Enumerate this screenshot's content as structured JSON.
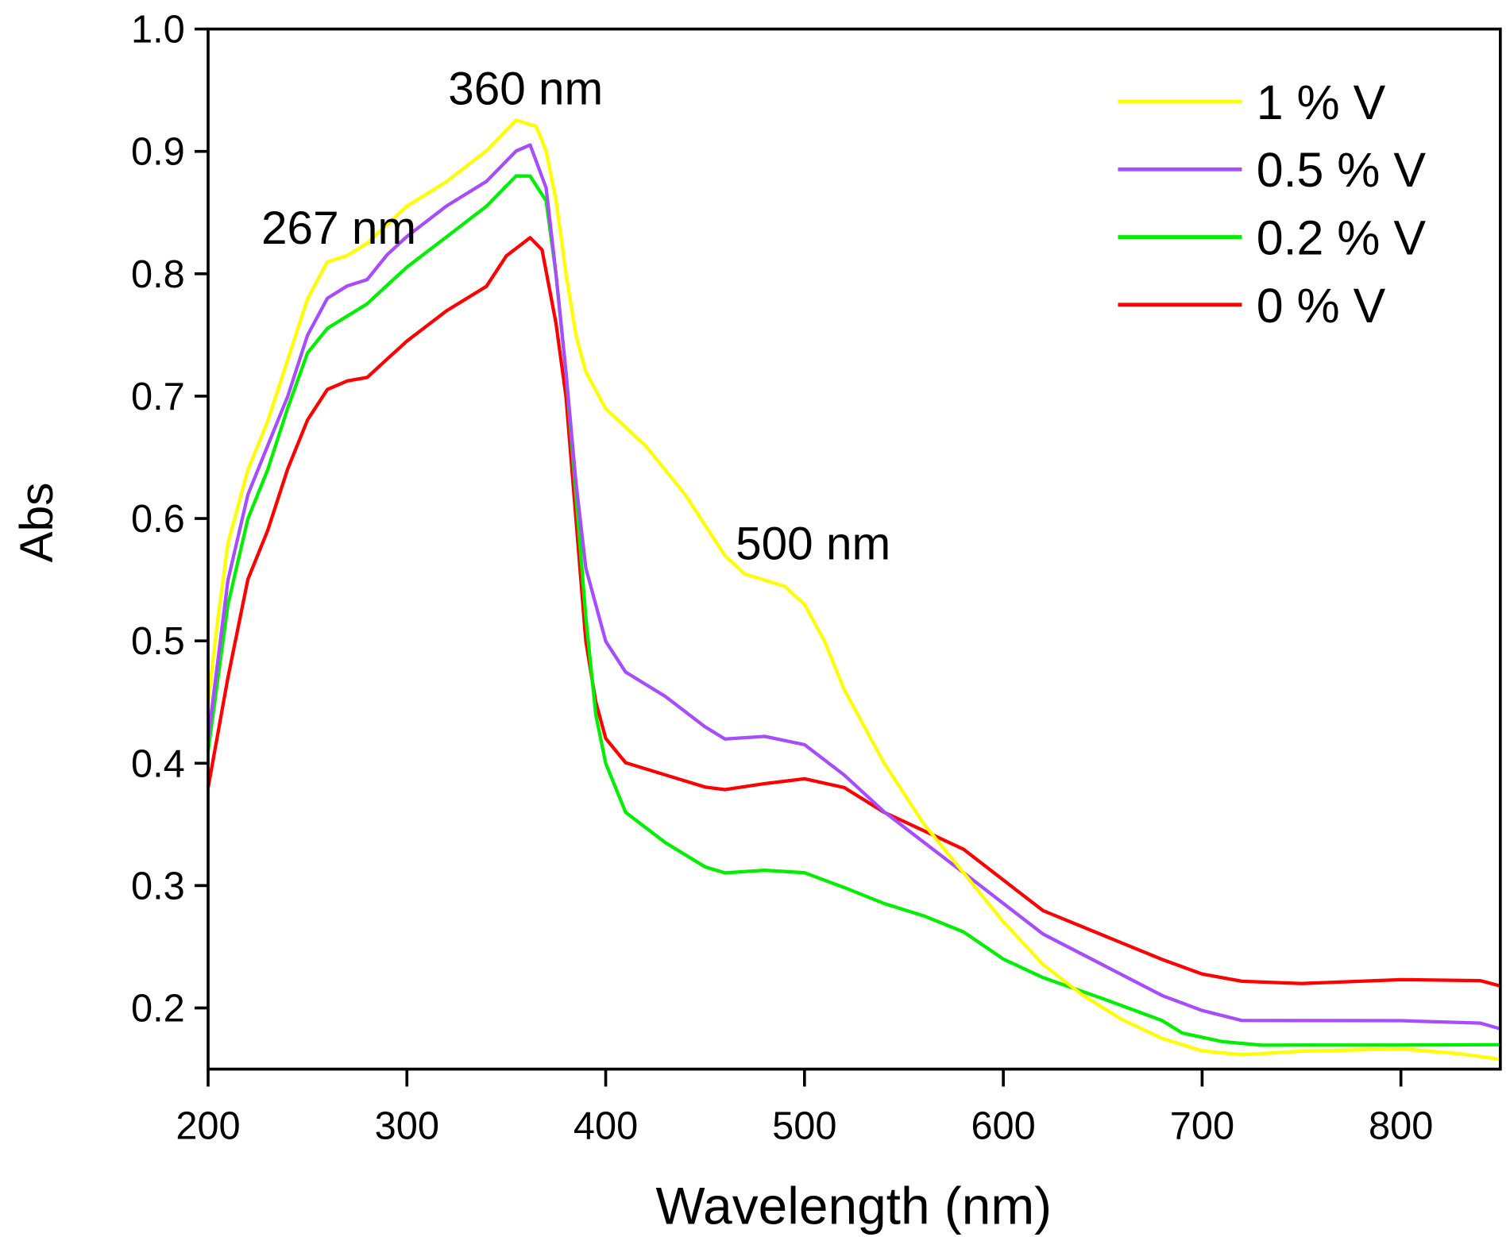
{
  "chart_data": {
    "type": "line",
    "title": "",
    "xlabel": "Wavelength (nm)",
    "ylabel": "Abs",
    "xlim": [
      200,
      850
    ],
    "ylim": [
      0.15,
      1.0
    ],
    "xticks": [
      200,
      300,
      400,
      500,
      600,
      700,
      800
    ],
    "xtick_labels": [
      "200",
      "300",
      "400",
      "500",
      "600",
      "700",
      "800"
    ],
    "yticks": [
      0.2,
      0.3,
      0.4,
      0.5,
      0.6,
      0.7,
      0.8,
      0.9,
      1.0
    ],
    "ytick_labels": [
      "0.2",
      "0.3",
      "0.4",
      "0.5",
      "0.6",
      "0.7",
      "0.8",
      "0.9",
      "1.0"
    ],
    "grid": false,
    "legend_position": "top-right",
    "annotations": [
      {
        "text": "267 nm",
        "x": 267,
        "y": 0.83
      },
      {
        "text": "360 nm",
        "x": 360,
        "y": 0.94
      },
      {
        "text": "500 nm",
        "x": 500,
        "y": 0.56
      }
    ],
    "series": [
      {
        "name": "1 % V",
        "color": "#ffff00",
        "x": [
          200,
          205,
          210,
          220,
          230,
          240,
          250,
          260,
          270,
          280,
          290,
          300,
          320,
          340,
          355,
          365,
          370,
          375,
          380,
          385,
          390,
          400,
          420,
          440,
          460,
          470,
          490,
          500,
          510,
          520,
          540,
          560,
          580,
          600,
          620,
          640,
          660,
          680,
          700,
          720,
          750,
          800,
          830,
          850
        ],
        "y": [
          0.45,
          0.52,
          0.58,
          0.64,
          0.68,
          0.73,
          0.78,
          0.81,
          0.815,
          0.825,
          0.84,
          0.855,
          0.875,
          0.9,
          0.925,
          0.92,
          0.9,
          0.86,
          0.8,
          0.75,
          0.72,
          0.69,
          0.66,
          0.62,
          0.57,
          0.555,
          0.545,
          0.53,
          0.5,
          0.46,
          0.4,
          0.35,
          0.31,
          0.27,
          0.235,
          0.21,
          0.19,
          0.175,
          0.165,
          0.162,
          0.165,
          0.167,
          0.163,
          0.158
        ]
      },
      {
        "name": "0.5 % V",
        "color": "#a64dff",
        "x": [
          200,
          210,
          220,
          230,
          240,
          250,
          260,
          270,
          280,
          290,
          300,
          320,
          340,
          355,
          362,
          370,
          375,
          380,
          385,
          390,
          400,
          410,
          430,
          450,
          460,
          480,
          500,
          520,
          540,
          560,
          580,
          600,
          620,
          650,
          680,
          700,
          720,
          750,
          800,
          840,
          850
        ],
        "y": [
          0.42,
          0.55,
          0.62,
          0.66,
          0.7,
          0.75,
          0.78,
          0.79,
          0.795,
          0.815,
          0.83,
          0.855,
          0.875,
          0.9,
          0.905,
          0.87,
          0.8,
          0.72,
          0.63,
          0.56,
          0.5,
          0.475,
          0.455,
          0.43,
          0.42,
          0.422,
          0.415,
          0.39,
          0.36,
          0.335,
          0.31,
          0.285,
          0.26,
          0.235,
          0.21,
          0.198,
          0.19,
          0.19,
          0.19,
          0.188,
          0.183
        ]
      },
      {
        "name": "0.2 % V",
        "color": "#00ee00",
        "x": [
          200,
          210,
          220,
          230,
          240,
          250,
          260,
          270,
          280,
          290,
          300,
          320,
          340,
          355,
          362,
          370,
          375,
          380,
          385,
          390,
          395,
          400,
          410,
          430,
          450,
          460,
          480,
          500,
          520,
          540,
          560,
          580,
          600,
          620,
          650,
          680,
          690,
          710,
          730,
          800,
          850
        ],
        "y": [
          0.41,
          0.53,
          0.6,
          0.64,
          0.69,
          0.735,
          0.755,
          0.765,
          0.775,
          0.79,
          0.805,
          0.83,
          0.855,
          0.88,
          0.88,
          0.86,
          0.8,
          0.72,
          0.62,
          0.52,
          0.44,
          0.4,
          0.36,
          0.335,
          0.315,
          0.31,
          0.312,
          0.31,
          0.298,
          0.285,
          0.275,
          0.262,
          0.24,
          0.225,
          0.208,
          0.19,
          0.18,
          0.173,
          0.17,
          0.17,
          0.17
        ]
      },
      {
        "name": "0 % V",
        "color": "#ff0000",
        "x": [
          200,
          210,
          220,
          230,
          240,
          250,
          260,
          270,
          280,
          290,
          300,
          320,
          340,
          350,
          362,
          368,
          375,
          380,
          385,
          390,
          395,
          400,
          410,
          430,
          450,
          460,
          480,
          500,
          520,
          540,
          560,
          580,
          600,
          620,
          650,
          680,
          700,
          720,
          750,
          800,
          840,
          850
        ],
        "y": [
          0.38,
          0.47,
          0.55,
          0.59,
          0.64,
          0.68,
          0.705,
          0.712,
          0.715,
          0.73,
          0.745,
          0.77,
          0.79,
          0.815,
          0.83,
          0.82,
          0.76,
          0.7,
          0.6,
          0.5,
          0.45,
          0.42,
          0.4,
          0.39,
          0.38,
          0.378,
          0.383,
          0.387,
          0.38,
          0.36,
          0.345,
          0.33,
          0.305,
          0.28,
          0.26,
          0.24,
          0.228,
          0.222,
          0.22,
          0.223,
          0.222,
          0.218
        ]
      }
    ]
  }
}
